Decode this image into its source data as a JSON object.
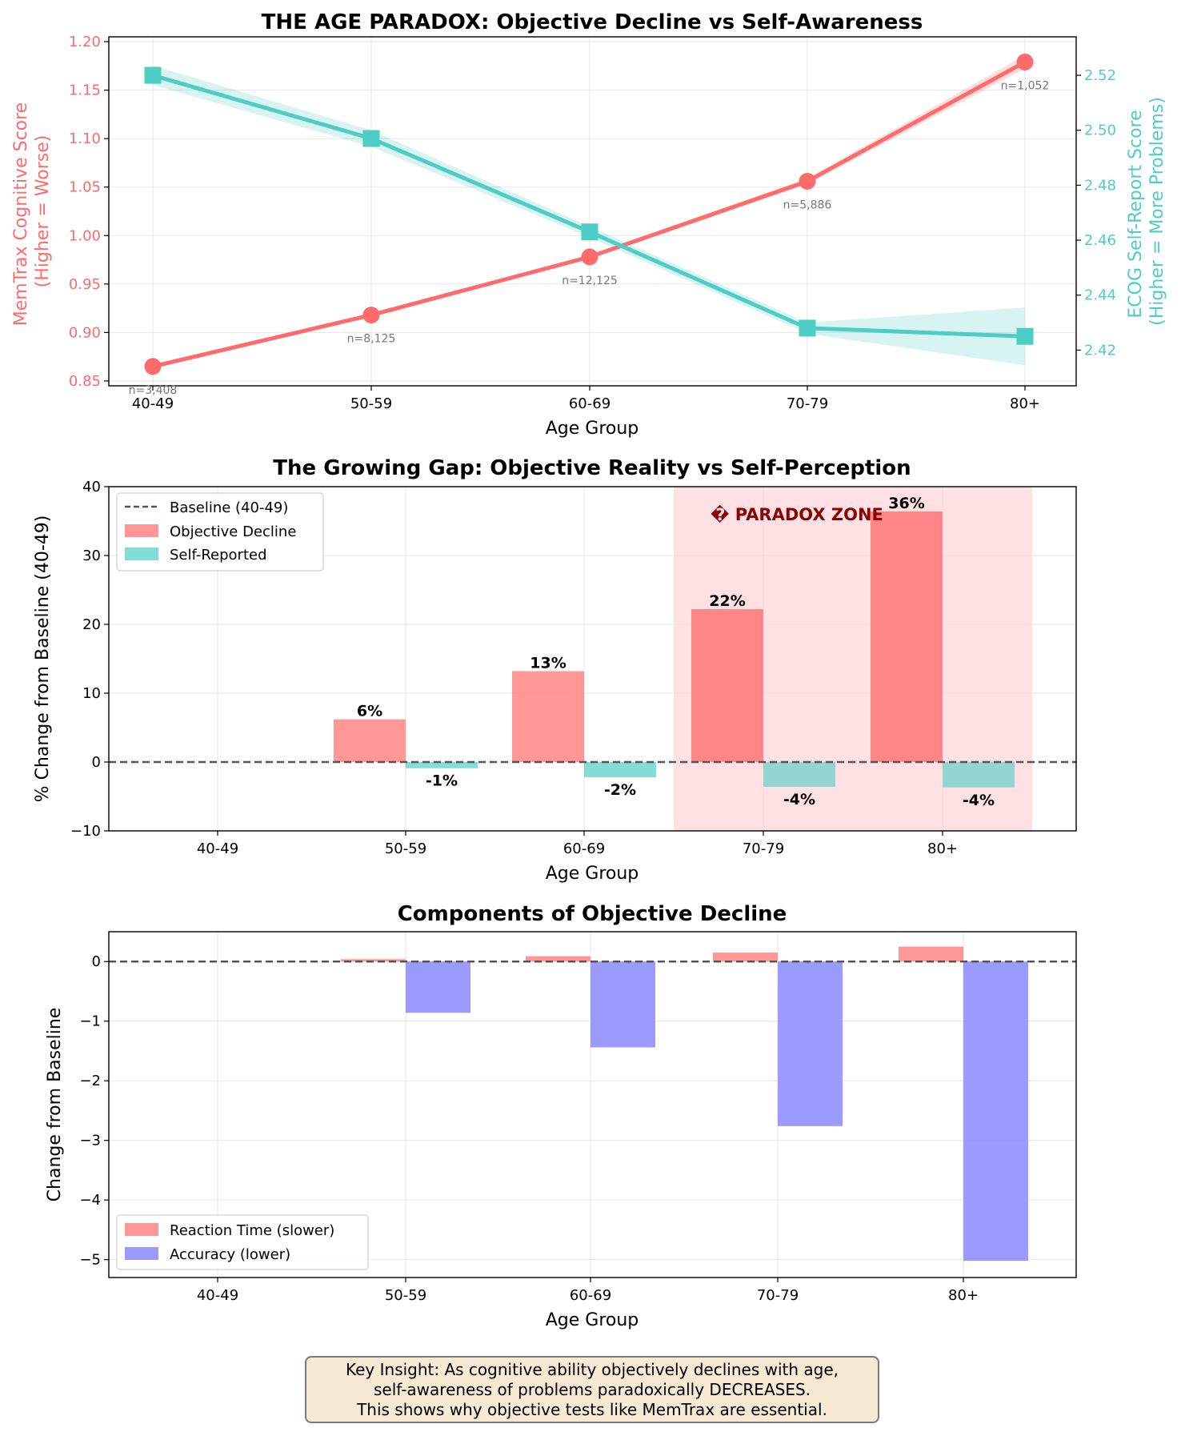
{
  "colors": {
    "objective": "#ff6b6b",
    "self_report": "#4ecdc4",
    "accuracy": "#8f8fff",
    "paradox_zone": "#ffd6da",
    "paradox_text": "#8b0000",
    "grid": "#e6e6e6",
    "baseline": "#555555"
  },
  "chart_data": [
    {
      "type": "line",
      "title": "THE AGE PARADOX: Objective Decline vs Self-Awareness",
      "xlabel": "Age Group",
      "ylabel_left": [
        "MemTrax Cognitive Score",
        "(Higher = Worse)"
      ],
      "ylabel_right": [
        "ECOG Self-Report Score",
        "(Higher = More Problems)"
      ],
      "categories": [
        "40-49",
        "50-59",
        "60-69",
        "70-79",
        "80+"
      ],
      "ylim_left": [
        0.845,
        1.205
      ],
      "yticks_left": [
        "0.85",
        "0.90",
        "0.95",
        "1.00",
        "1.05",
        "1.10",
        "1.15",
        "1.20"
      ],
      "ylim_right": [
        2.407,
        2.534
      ],
      "yticks_right": [
        "2.42",
        "2.44",
        "2.46",
        "2.48",
        "2.50",
        "2.52"
      ],
      "grid": true,
      "series": [
        {
          "axis": "left",
          "marker": "circle",
          "values": [
            0.865,
            0.918,
            0.978,
            1.056,
            1.179
          ],
          "band_halfwidth": [
            0.002,
            0.002,
            0.002,
            0.003,
            0.007
          ]
        },
        {
          "axis": "right",
          "marker": "square",
          "values": [
            2.52,
            2.497,
            2.463,
            2.428,
            2.425
          ],
          "band_halfwidth": [
            0.0035,
            0.003,
            0.002,
            0.002,
            0.0105
          ]
        }
      ],
      "annotations": [
        "n=3,408",
        "n=8,125",
        "n=12,125",
        "n=5,886",
        "n=1,052"
      ]
    },
    {
      "type": "bar",
      "title": "The Growing Gap: Objective Reality vs Self-Perception",
      "xlabel": "Age Group",
      "ylabel": "% Change from Baseline (40-49)",
      "categories": [
        "40-49",
        "50-59",
        "60-69",
        "70-79",
        "80+"
      ],
      "ylim": [
        -10,
        40
      ],
      "yticks": [
        "−10",
        "0",
        "10",
        "20",
        "30",
        "40"
      ],
      "grid": true,
      "legend_position": "top-left",
      "baseline_label": "Baseline (40-49)",
      "series": [
        {
          "name": "Objective Decline",
          "values": [
            0,
            6.2,
            13.2,
            22.2,
            36.4
          ]
        },
        {
          "name": "Self-Reported",
          "values": [
            0,
            -0.9,
            -2.2,
            -3.6,
            -3.7
          ]
        }
      ],
      "labels_objective": [
        "6%",
        "13%",
        "22%",
        "36%"
      ],
      "labels_self": [
        "-1%",
        "-2%",
        "-4%",
        "-4%"
      ],
      "paradox_zone_label": "� PARADOX ZONE",
      "paradox_zone_categories": [
        "70-79",
        "80+"
      ]
    },
    {
      "type": "bar",
      "title": "Components of Objective Decline",
      "xlabel": "Age Group",
      "ylabel": "Change from Baseline",
      "categories": [
        "40-49",
        "50-59",
        "60-69",
        "70-79",
        "80+"
      ],
      "ylim": [
        -5.3,
        0.5
      ],
      "yticks": [
        "−5",
        "−4",
        "−3",
        "−2",
        "−1",
        "0"
      ],
      "grid": true,
      "legend_position": "bottom-left",
      "series": [
        {
          "name": "Reaction Time (slower)",
          "values": [
            0,
            0.04,
            0.09,
            0.15,
            0.25
          ]
        },
        {
          "name": "Accuracy (lower)",
          "values": [
            0,
            -0.86,
            -1.44,
            -2.76,
            -5.02
          ]
        }
      ]
    }
  ],
  "insight": {
    "line1": "Key Insight: As cognitive ability objectively declines with age,",
    "line2": "self-awareness of problems paradoxically DECREASES.",
    "line3": "This shows why objective tests like MemTrax are essential."
  }
}
